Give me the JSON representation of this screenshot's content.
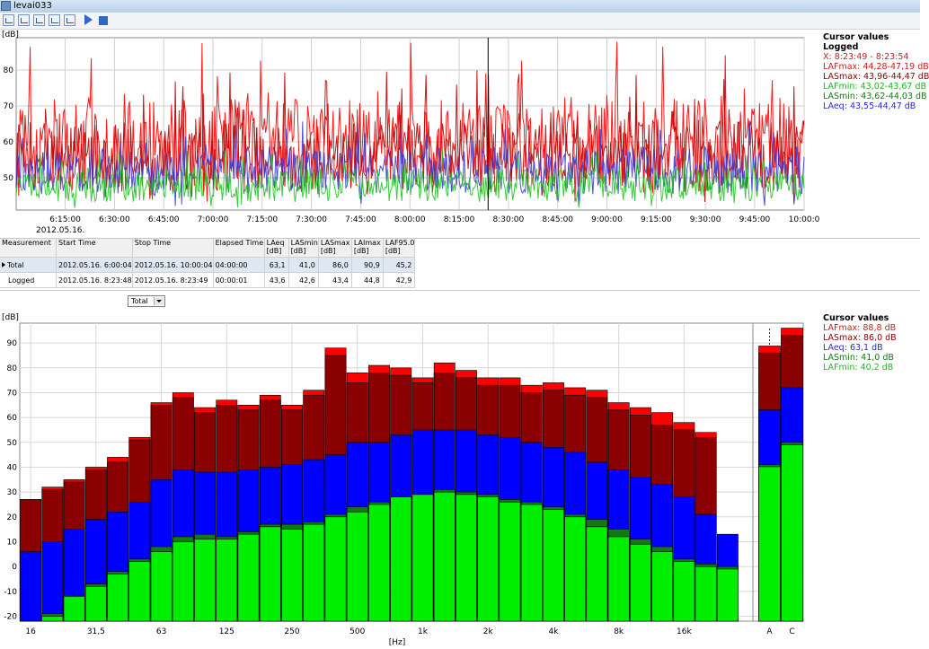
{
  "window": {
    "title": "levai033",
    "subtitle": ""
  },
  "toolbar": {
    "icons": [
      "chart-icon",
      "chart-icon",
      "chart-icon",
      "chart-icon",
      "chart-icon",
      "play-icon",
      "stop-icon"
    ]
  },
  "colors": {
    "lafmax": "#ff0000",
    "lasmax": "#8b0000",
    "laeq": "#0000ff",
    "lasmin": "#127a12",
    "lafmin": "#00ee00",
    "cursor_red": "#c0392b"
  },
  "upper_cursor": {
    "header": "Cursor values",
    "subheader": "Logged",
    "lines": [
      {
        "text": "X: 8:23:49 - 8:23:54",
        "color": "#c81e1e"
      },
      {
        "text": "LAFmax: 44,28-47,19 dB",
        "color": "#c81e1e"
      },
      {
        "text": "LASmax: 43,96-44,47 dB",
        "color": "#8b0000"
      },
      {
        "text": "LAFmin: 43,02-43,67 dB",
        "color": "#22b422"
      },
      {
        "text": "LASmin: 43,62-44,03 dB",
        "color": "#127a12"
      },
      {
        "text": "LAeq: 43,55-44,47 dB",
        "color": "#2a2ad0"
      }
    ]
  },
  "lower_cursor": {
    "header": "Cursor values",
    "lines": [
      {
        "text": "LAFmax: 88,8 dB",
        "color": "#c81e1e"
      },
      {
        "text": "LASmax: 86,0 dB",
        "color": "#8b0000"
      },
      {
        "text": "LAeq: 63,1 dB",
        "color": "#2a2ad0"
      },
      {
        "text": "LASmin: 41,0 dB",
        "color": "#127a12"
      },
      {
        "text": "LAFmin: 40,2 dB",
        "color": "#22b422"
      }
    ]
  },
  "table": {
    "headers": [
      "Measurement",
      "Start Time",
      "Stop Time",
      "Elapsed Time",
      "LAeq [dB]",
      "LASmin [dB]",
      "LASmax [dB]",
      "LAImax [dB]",
      "LAF95.0 [dB]"
    ],
    "rows": [
      [
        "Total",
        "2012.05.16. 6:00:04",
        "2012.05.16. 10:00:04",
        "04:00:00",
        "63,1",
        "41,0",
        "86,0",
        "90,9",
        "45,2"
      ],
      [
        "Logged",
        "2012.05.16. 8:23:48",
        "2012.05.16. 8:23:49",
        "00:00:01",
        "43,6",
        "42,6",
        "43,4",
        "44,8",
        "42,9"
      ]
    ]
  },
  "dropdown": {
    "value": "Total"
  },
  "chart_data": [
    {
      "type": "line",
      "ylabel": "[dB]",
      "ylim": [
        41,
        89
      ],
      "yticks": [
        50,
        60,
        70,
        80
      ],
      "xlim": [
        "06:00:04",
        "10:00:04"
      ],
      "xticks": [
        "6:15:00",
        "6:30:00",
        "6:45:00",
        "7:00:00",
        "7:15:00",
        "7:30:00",
        "7:45:00",
        "8:00:00",
        "8:15:00",
        "8:30:00",
        "8:45:00",
        "9:00:00",
        "9:15:00",
        "9:30:00",
        "9:45:00",
        "10:00:0"
      ],
      "date_label": "2012.05.16.",
      "cursor_x": "08:23:49",
      "grid": true,
      "series": [
        {
          "name": "LAFmax",
          "color": "#ff0000",
          "base": 60,
          "range": [
            43,
            88
          ]
        },
        {
          "name": "LASmax",
          "color": "#c00000",
          "base": 56,
          "range": [
            43,
            80
          ]
        },
        {
          "name": "LAeq",
          "color": "#3a3ad8",
          "base": 52,
          "range": [
            42,
            66
          ]
        },
        {
          "name": "LAFmin",
          "color": "#22c422",
          "base": 48,
          "range": [
            41,
            58
          ]
        }
      ]
    },
    {
      "type": "bar",
      "xlabel": "[Hz]",
      "ylabel": "[dB]",
      "ylim": [
        -22,
        98
      ],
      "yticks": [
        -20,
        -10,
        0,
        10,
        20,
        30,
        40,
        50,
        60,
        70,
        80,
        90
      ],
      "xtick_labels": [
        {
          "band": 1,
          "label": "16"
        },
        {
          "band": 4,
          "label": "31,5"
        },
        {
          "band": 7,
          "label": "63"
        },
        {
          "band": 10,
          "label": "125"
        },
        {
          "band": 13,
          "label": "250"
        },
        {
          "band": 16,
          "label": "500"
        },
        {
          "band": 19,
          "label": "1k"
        },
        {
          "band": 22,
          "label": "2k"
        },
        {
          "band": 25,
          "label": "4k"
        },
        {
          "band": 28,
          "label": "8k"
        },
        {
          "band": 31,
          "label": "16k"
        }
      ],
      "bands_count": 33,
      "series": [
        {
          "name": "LAFmax",
          "color": "#ff0000",
          "values": [
            27,
            32,
            35,
            40,
            44,
            52,
            66,
            70,
            64,
            67,
            65,
            69,
            65,
            71,
            88,
            78,
            81,
            80,
            76,
            82,
            79,
            76,
            76,
            73,
            74,
            72,
            71,
            66,
            64,
            62,
            58,
            54,
            0
          ]
        },
        {
          "name": "LASmax",
          "color": "#8b0000",
          "values": [
            27,
            31,
            34,
            39,
            42,
            51,
            65,
            68,
            62,
            65,
            63,
            67,
            63,
            69,
            85,
            74,
            78,
            77,
            74,
            78,
            76,
            73,
            73,
            70,
            71,
            69,
            68,
            63,
            61,
            57,
            55,
            52,
            0
          ]
        },
        {
          "name": "LAeq",
          "color": "#0000ff",
          "values": [
            6,
            10,
            15,
            19,
            22,
            26,
            35,
            39,
            38,
            38,
            39,
            40,
            41,
            43,
            45,
            50,
            50,
            53,
            55,
            55,
            55,
            53,
            52,
            50,
            48,
            46,
            42,
            39,
            36,
            33,
            28,
            21,
            13
          ]
        },
        {
          "name": "LASmin",
          "color": "#127a12",
          "values": [
            -22,
            -19,
            -12,
            -7,
            -2,
            3,
            8,
            12,
            13,
            12,
            14,
            17,
            17,
            18,
            21,
            24,
            26,
            28,
            29,
            31,
            30,
            29,
            27,
            26,
            24,
            21,
            19,
            15,
            11,
            8,
            3,
            1,
            0
          ]
        },
        {
          "name": "LAFmin",
          "color": "#00ee00",
          "values": [
            -22,
            -20,
            -12,
            -8,
            -3,
            2,
            6,
            10,
            11,
            11,
            13,
            16,
            15,
            17,
            20,
            22,
            25,
            28,
            29,
            30,
            29,
            28,
            26,
            25,
            23,
            20,
            16,
            12,
            9,
            6,
            2,
            0,
            -1
          ]
        }
      ],
      "totals": {
        "labels": [
          "A",
          "C"
        ],
        "LAFmax": [
          88.8,
          96
        ],
        "LASmax": [
          86.0,
          93
        ],
        "LAeq": [
          63.1,
          72
        ],
        "LASmin": [
          41.0,
          50
        ],
        "LAFmin": [
          40.2,
          49
        ]
      }
    }
  ]
}
